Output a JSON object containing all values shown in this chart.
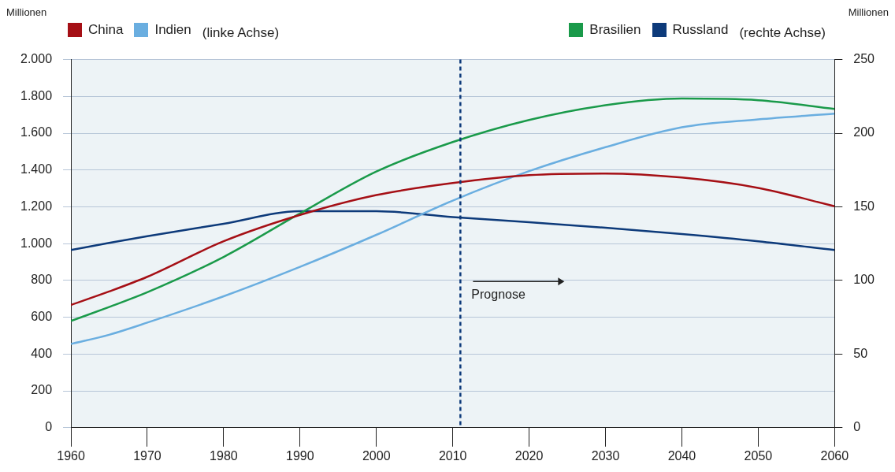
{
  "chart_data": {
    "type": "line",
    "ylabel": "Millionen",
    "y2label": "Millionen",
    "x": [
      1960,
      1965,
      1970,
      1980,
      1990,
      2000,
      2010,
      2020,
      2030,
      2040,
      2050,
      2060
    ],
    "series": [
      {
        "name": "China",
        "color": "#a50f15",
        "axis": "y",
        "values": [
          667,
          740,
          820,
          1013,
          1156,
          1264,
          1329,
          1372,
          1381,
          1359,
          1303,
          1203
        ]
      },
      {
        "name": "Indien",
        "color": "#6aaee0",
        "axis": "y",
        "values": [
          455,
          505,
          571,
          714,
          874,
          1048,
          1234,
          1394,
          1524,
          1632,
          1675,
          1706
        ]
      },
      {
        "name": "Brasilien",
        "color": "#1a9a4a",
        "axis": "y2",
        "values": [
          72.5,
          82,
          92,
          116,
          145.5,
          174,
          194,
          209,
          219,
          223.5,
          222.4,
          216.5
        ]
      },
      {
        "name": "Russland",
        "color": "#0d3a7a",
        "axis": "y2",
        "values": [
          120.7,
          125.5,
          130,
          138.5,
          147,
          147,
          143,
          139.6,
          135.8,
          131.5,
          126.6,
          120.7
        ]
      }
    ],
    "xlim": [
      1960,
      2060
    ],
    "xticks": [
      1960,
      1970,
      1980,
      1990,
      2000,
      2010,
      2020,
      2030,
      2040,
      2050,
      2060
    ],
    "ylim": [
      0,
      2000
    ],
    "yticks": [
      0,
      200,
      400,
      600,
      800,
      {
        "value": 1000,
        "label": "1.000"
      },
      {
        "value": 1200,
        "label": "1.200"
      },
      {
        "value": 1400,
        "label": "1.400"
      },
      {
        "value": 1600,
        "label": "1.600"
      },
      {
        "value": 1800,
        "label": "1.800"
      },
      {
        "value": 2000,
        "label": "2.000"
      }
    ],
    "y2lim": [
      0,
      250
    ],
    "y2ticks": [
      0,
      50,
      100,
      150,
      200,
      250
    ],
    "ref_lines": [
      {
        "axis": "x",
        "value": 2011,
        "color": "#0d3a7a",
        "line_style": "dashed"
      }
    ],
    "annotations": [
      "(linke Achse)",
      "(rechte Achse)",
      "Prognose"
    ],
    "grid": "y",
    "legend": "top",
    "marker": "none",
    "line_style": "solid"
  }
}
